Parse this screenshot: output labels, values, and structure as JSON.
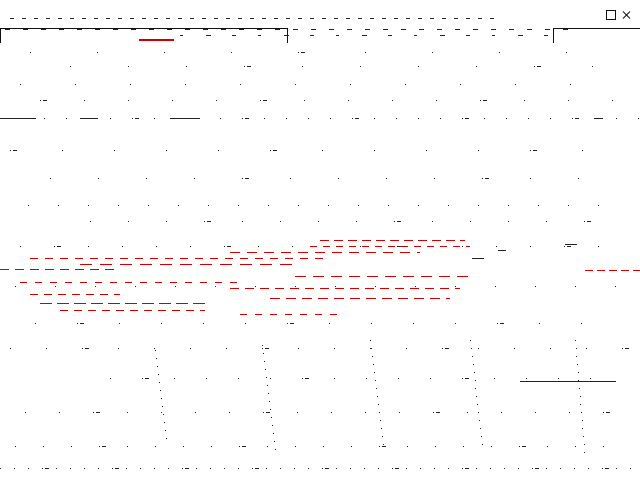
{
  "screen": {
    "title": "",
    "status_text": "",
    "colors": {
      "background": "#ffffff",
      "foreground": "#111111",
      "accent": "#cc0000"
    }
  },
  "toolbar": {
    "close_icon": "close-icon",
    "maximize_icon": "maximize-icon"
  }
}
